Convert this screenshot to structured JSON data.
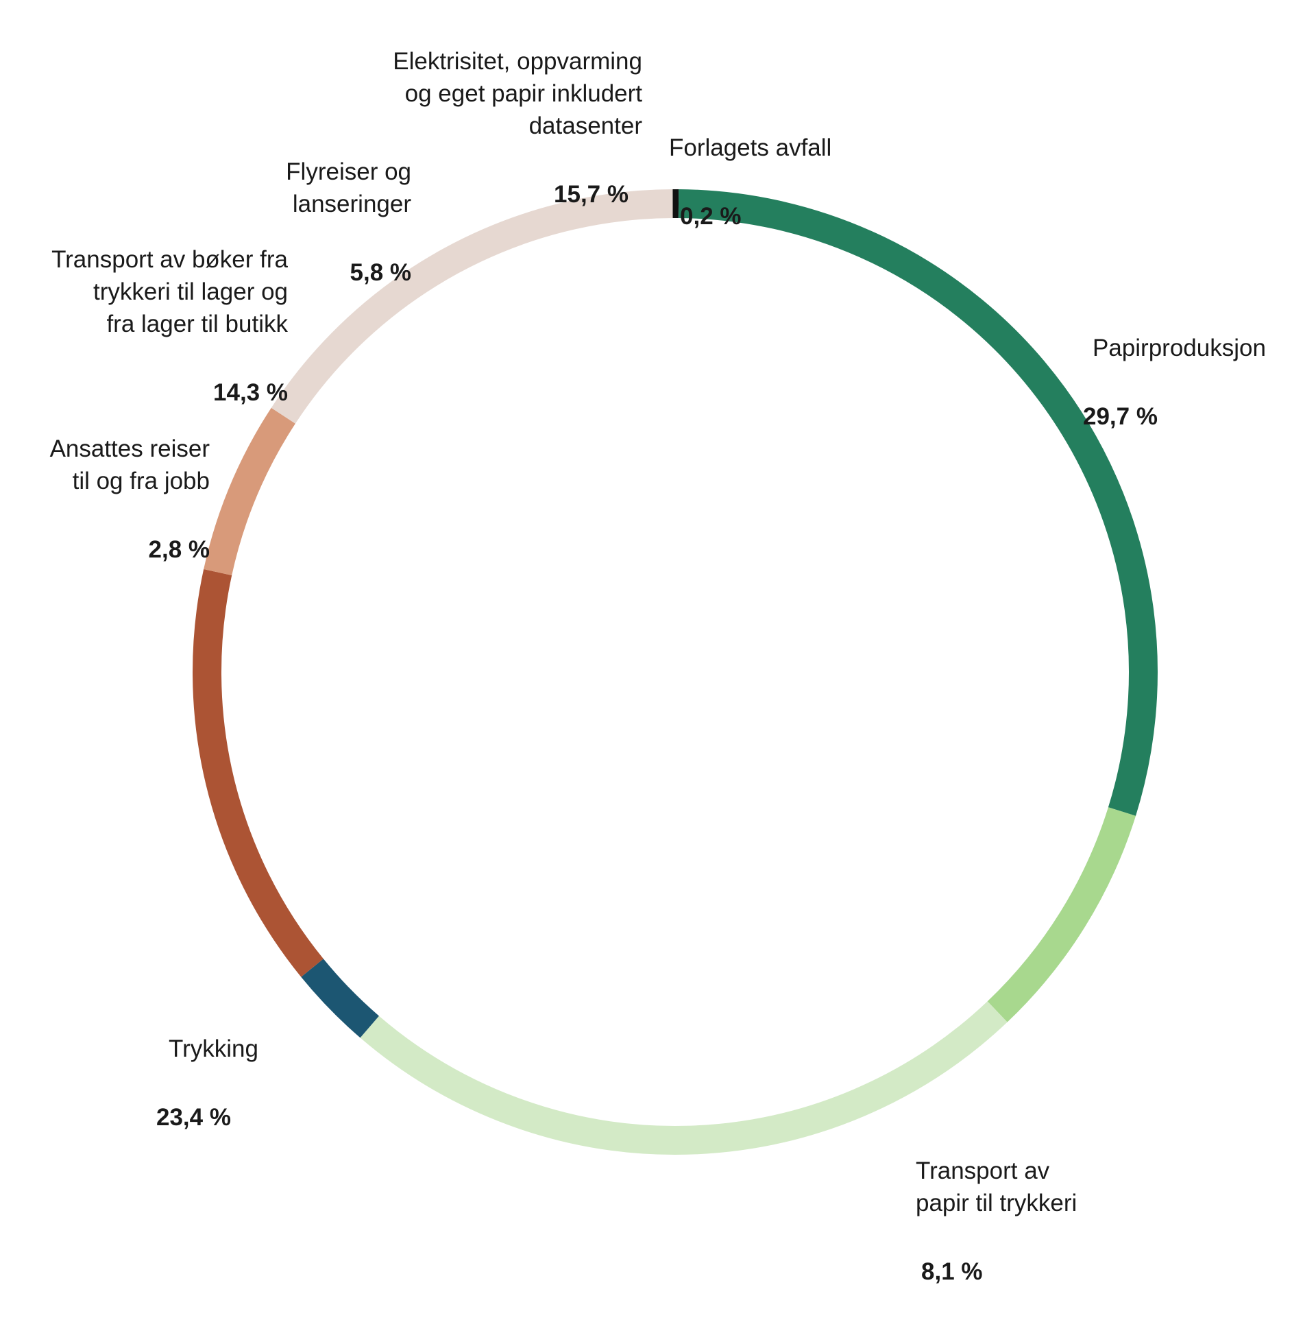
{
  "chart_data": {
    "type": "pie",
    "style": "donut",
    "slices": [
      {
        "label": "Forlagets avfall",
        "value": 0.2,
        "display": "0,2 %",
        "color": "#111111"
      },
      {
        "label": "Papirproduksjon",
        "value": 29.7,
        "display": "29,7 %",
        "color": "#247F5E"
      },
      {
        "label": "Transport av\npapir til trykkeri",
        "value": 8.1,
        "display": "8,1 %",
        "color": "#A8D88E"
      },
      {
        "label": "Trykking",
        "value": 23.4,
        "display": "23,4 %",
        "color": "#D3EAC6"
      },
      {
        "label": "Ansattes reiser\ntil og fra jobb",
        "value": 2.8,
        "display": "2,8 %",
        "color": "#1C5672"
      },
      {
        "label": "Transport av bøker fra\ntrykkeri til lager og\nfra lager til butikk",
        "value": 14.3,
        "display": "14,3 %",
        "color": "#AC5434"
      },
      {
        "label": "Flyreiser og\nlanseringer",
        "value": 5.8,
        "display": "5,8 %",
        "color": "#D89A7A"
      },
      {
        "label": "Elektrisitet, oppvarming\nog eget papir inkludert\ndatasenter",
        "value": 15.7,
        "display": "15,7 %",
        "color": "#E6D8D1"
      }
    ]
  }
}
